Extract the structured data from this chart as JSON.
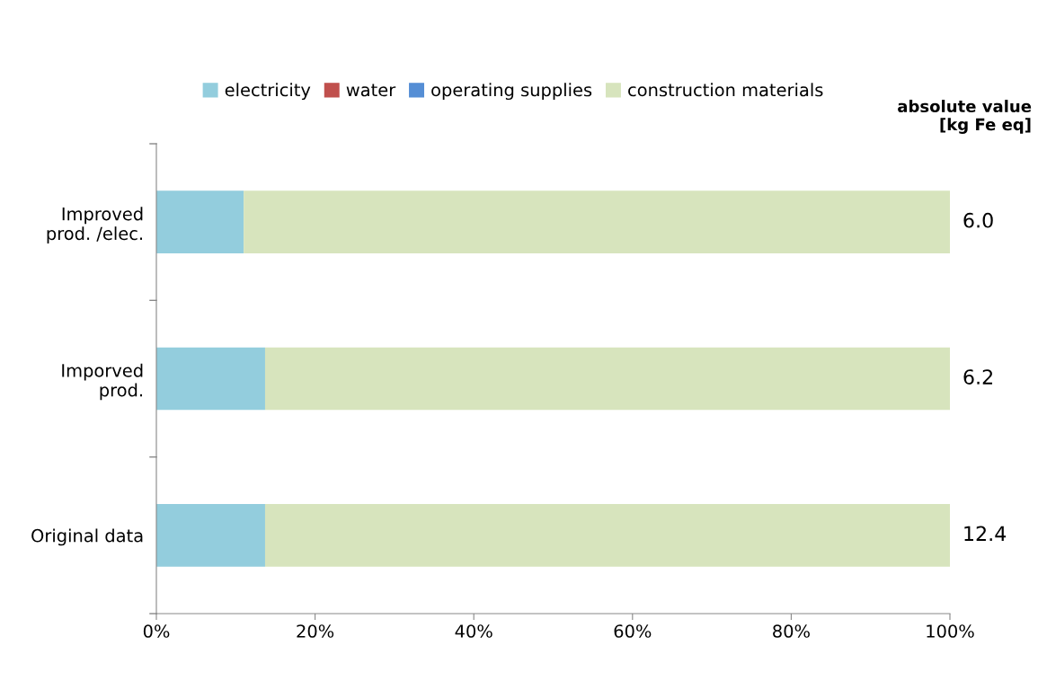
{
  "chart_data": {
    "type": "bar",
    "orientation": "horizontal",
    "stacked": true,
    "categories": [
      "Improved\nprod. /elec.",
      "Imporved\nprod.",
      "Original data"
    ],
    "series": [
      {
        "name": "electricity",
        "color": "#93cddd",
        "values": [
          11,
          13.7,
          13.7
        ]
      },
      {
        "name": "water",
        "color": "#c0504d",
        "values": [
          0,
          0,
          0
        ]
      },
      {
        "name": "operating supplies",
        "color": "#558ed5",
        "values": [
          0,
          0,
          0
        ]
      },
      {
        "name": "construction materials",
        "color": "#d7e4bd",
        "values": [
          89,
          86.3,
          86.3
        ]
      }
    ],
    "xlim": [
      0,
      100
    ],
    "xticks": [
      {
        "value": 0,
        "label": "0%"
      },
      {
        "value": 20,
        "label": "20%"
      },
      {
        "value": 40,
        "label": "40%"
      },
      {
        "value": 60,
        "label": "60%"
      },
      {
        "value": 80,
        "label": "80%"
      },
      {
        "value": 100,
        "label": "100%"
      }
    ],
    "annotations": [
      "absolute value\n[kg Fe eq]",
      "6.0",
      "6.2",
      "12.4"
    ],
    "grid": false,
    "legend": "top"
  }
}
